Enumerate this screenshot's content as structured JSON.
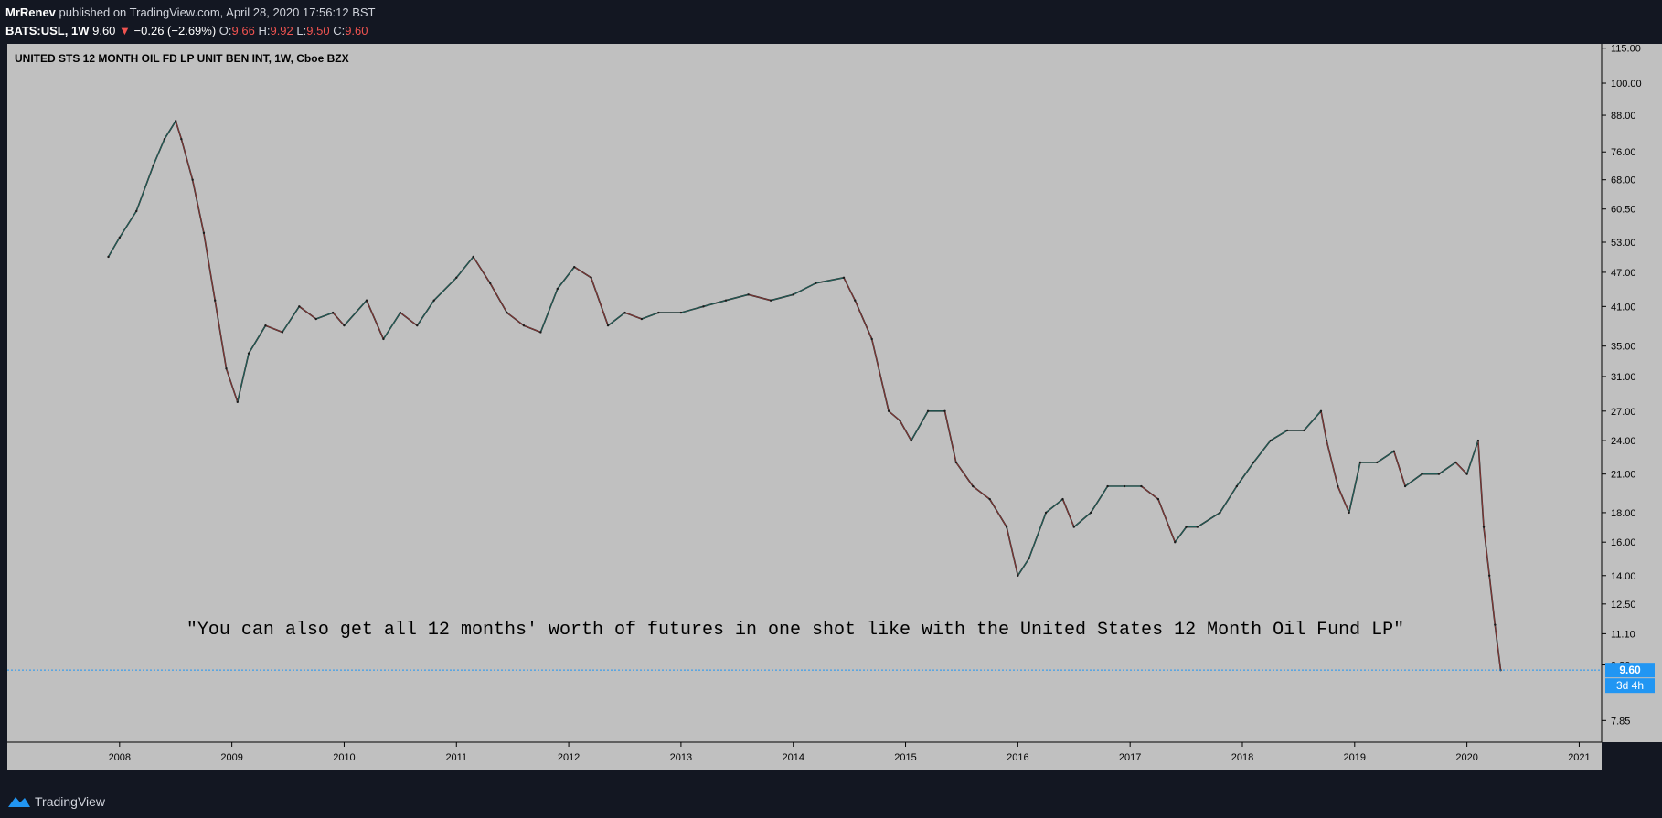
{
  "header": {
    "author": "MrRenev",
    "published_text": "published on TradingView.com, April 28, 2020 17:56:12 BST",
    "symbol": "BATS:USL, 1W",
    "last": "9.60",
    "change": "−0.26 (−2.69%)",
    "open_label": "O:",
    "open": "9.66",
    "high_label": "H:",
    "high": "9.92",
    "low_label": "L:",
    "low": "9.50",
    "close_label": "C:",
    "close": "9.60"
  },
  "footer": {
    "brand": "TradingView"
  },
  "colors": {
    "up": "#26a69a",
    "down": "#ef5350",
    "plot_bg": "#c0c0c0",
    "price_line": "#2196f3",
    "background": "#131722"
  },
  "chart_data": {
    "type": "line",
    "title": "UNITED STS 12 MONTH OIL FD LP UNIT BEN INT, 1W, Cboe BZX",
    "annotation": "\"You can also get all 12 months' worth of futures in one shot like with the United States 12 Month Oil Fund LP\"",
    "y_scale": "log",
    "ylim": [
      7.2,
      117
    ],
    "xlim": [
      2007.0,
      2021.2
    ],
    "y_ticks": [
      115,
      100,
      88,
      76,
      68,
      60.5,
      53,
      47,
      41,
      35,
      31,
      27,
      24,
      21,
      18,
      16,
      14,
      12.5,
      11.1,
      9.8,
      7.85
    ],
    "y_tick_labels": [
      "115.00",
      "100.00",
      "88.00",
      "76.00",
      "68.00",
      "60.50",
      "53.00",
      "47.00",
      "41.00",
      "35.00",
      "31.00",
      "27.00",
      "24.00",
      "21.00",
      "18.00",
      "16.00",
      "14.00",
      "12.50",
      "11.10",
      "9.80",
      "7.85"
    ],
    "x_ticks": [
      2008,
      2009,
      2010,
      2011,
      2012,
      2013,
      2014,
      2015,
      2016,
      2017,
      2018,
      2019,
      2020,
      2021
    ],
    "x_tick_labels": [
      "2008",
      "2009",
      "2010",
      "2011",
      "2012",
      "2013",
      "2014",
      "2015",
      "2016",
      "2017",
      "2018",
      "2019",
      "2020",
      "2021"
    ],
    "last_price": 9.6,
    "last_price_label": "9.60",
    "countdown_label": "3d 4h",
    "series": [
      {
        "x": [
          2007.9,
          2008.0,
          2008.15,
          2008.3,
          2008.4,
          2008.5,
          2008.55,
          2008.65,
          2008.75,
          2008.85,
          2008.95,
          2009.05,
          2009.15,
          2009.3,
          2009.45,
          2009.6,
          2009.75,
          2009.9,
          2010.0,
          2010.2,
          2010.35,
          2010.5,
          2010.65,
          2010.8,
          2011.0,
          2011.15,
          2011.3,
          2011.45,
          2011.6,
          2011.75,
          2011.9,
          2012.05,
          2012.2,
          2012.35,
          2012.5,
          2012.65,
          2012.8,
          2013.0,
          2013.2,
          2013.4,
          2013.6,
          2013.8,
          2014.0,
          2014.2,
          2014.45,
          2014.55,
          2014.7,
          2014.85,
          2014.95,
          2015.05,
          2015.2,
          2015.35,
          2015.45,
          2015.6,
          2015.75,
          2015.9,
          2016.0,
          2016.1,
          2016.25,
          2016.4,
          2016.5,
          2016.65,
          2016.8,
          2016.95,
          2017.1,
          2017.25,
          2017.4,
          2017.5,
          2017.6,
          2017.8,
          2017.95,
          2018.1,
          2018.25,
          2018.4,
          2018.55,
          2018.7,
          2018.75,
          2018.85,
          2018.95,
          2019.05,
          2019.2,
          2019.35,
          2019.45,
          2019.6,
          2019.75,
          2019.9,
          2020.0,
          2020.1,
          2020.15,
          2020.2,
          2020.25,
          2020.3
        ],
        "values": [
          50,
          54,
          60,
          72,
          80,
          86,
          80,
          68,
          55,
          42,
          32,
          28,
          34,
          38,
          37,
          41,
          39,
          40,
          38,
          42,
          36,
          40,
          38,
          42,
          46,
          50,
          45,
          40,
          38,
          37,
          44,
          48,
          46,
          38,
          40,
          39,
          40,
          40,
          41,
          42,
          43,
          42,
          43,
          45,
          46,
          42,
          36,
          27,
          26,
          24,
          27,
          27,
          22,
          20,
          19,
          17,
          14,
          15,
          18,
          19,
          17,
          18,
          20,
          20,
          20,
          19,
          16,
          17,
          17,
          18,
          20,
          22,
          24,
          25,
          25,
          27,
          24,
          20,
          18,
          22,
          22,
          23,
          20,
          21,
          21,
          22,
          21,
          24,
          17,
          14,
          11.5,
          9.6
        ]
      }
    ]
  }
}
